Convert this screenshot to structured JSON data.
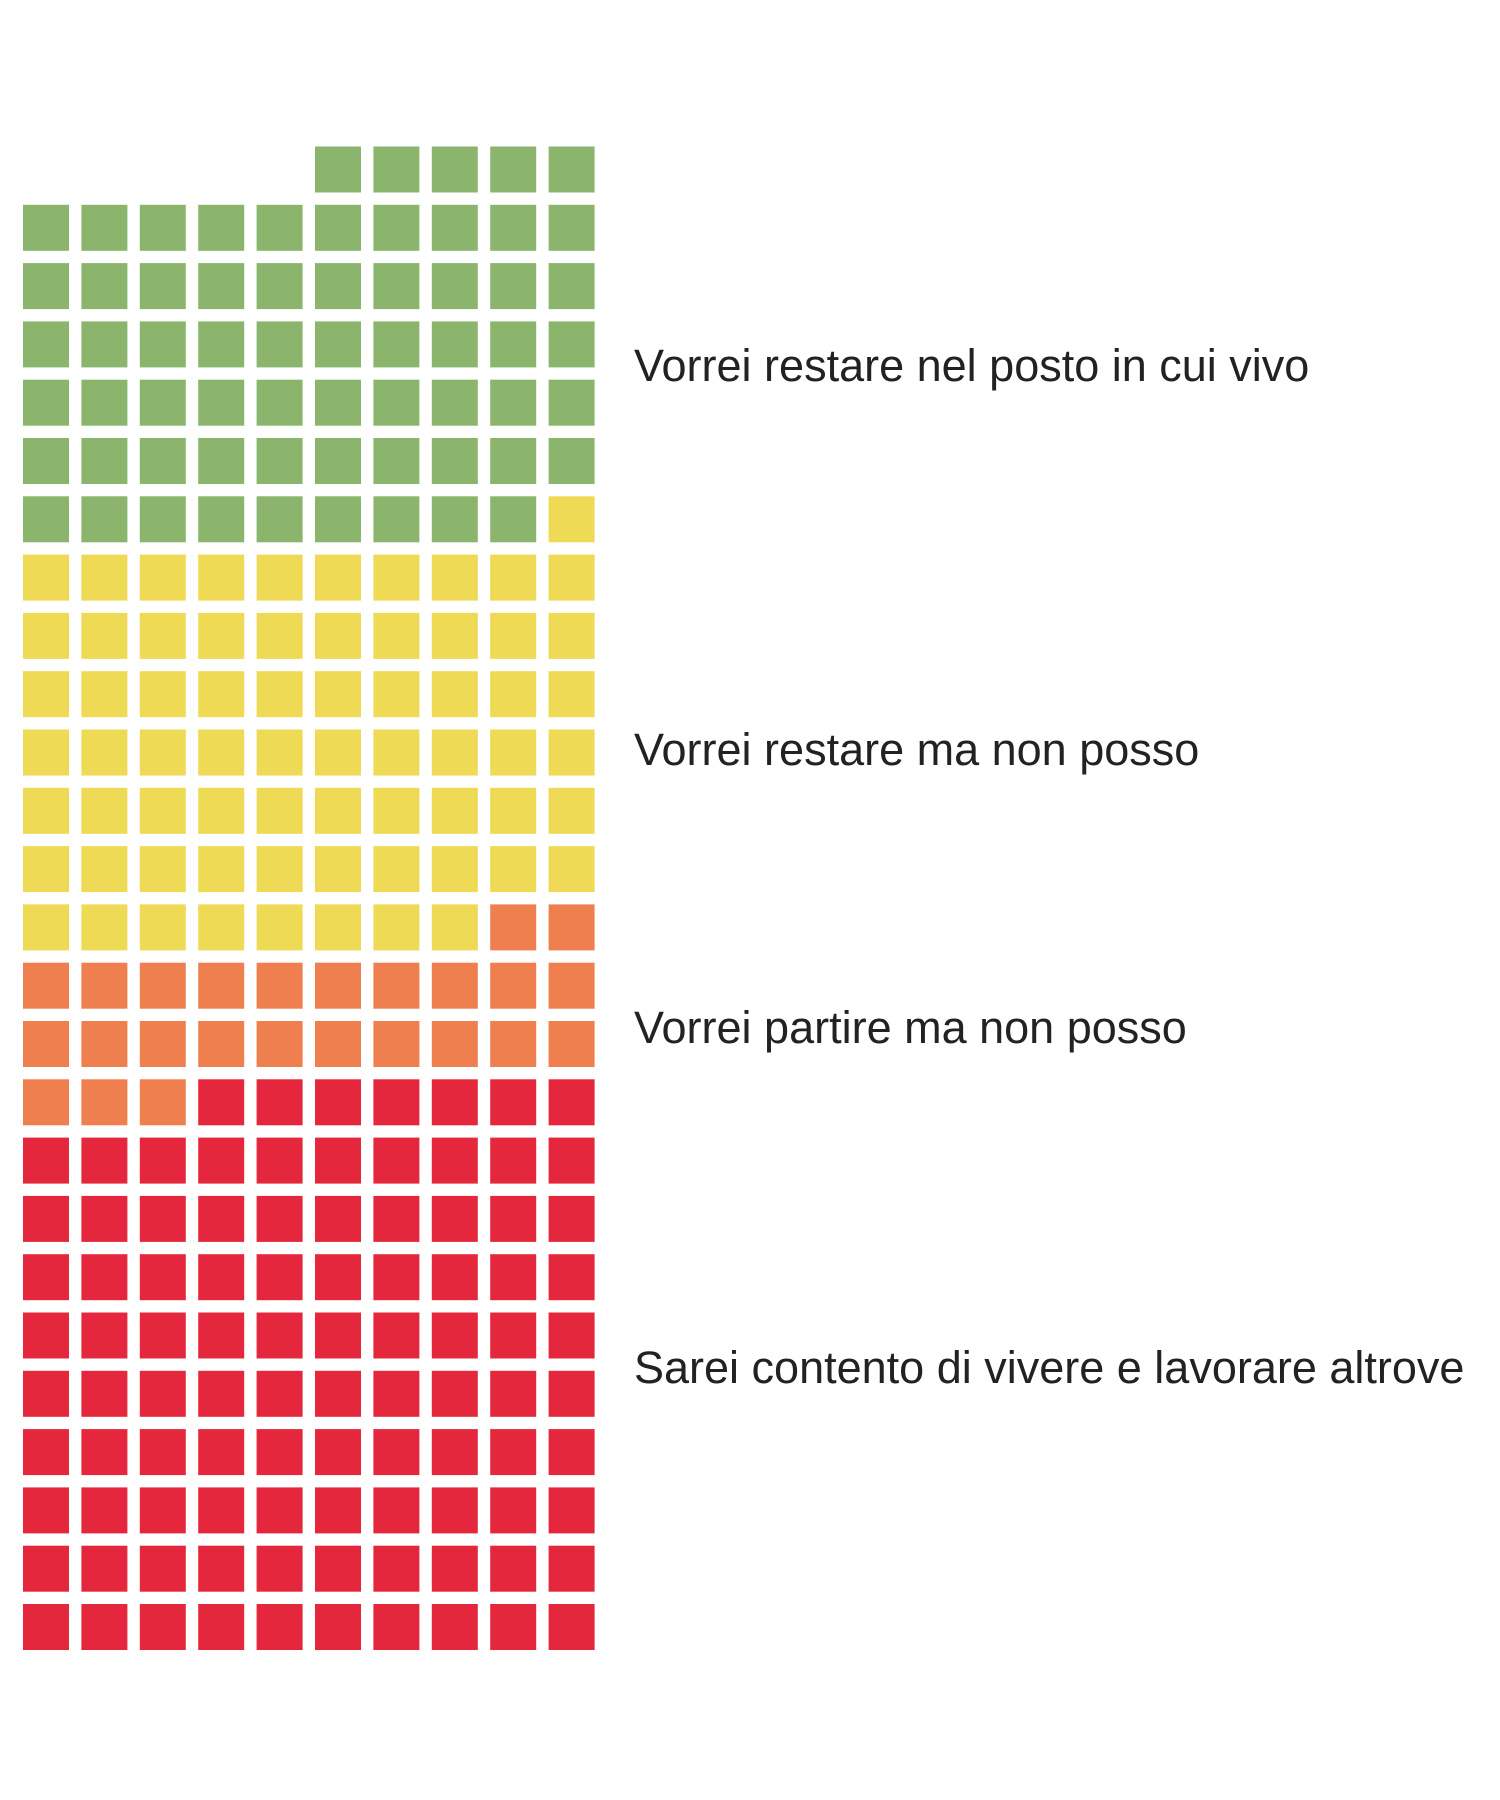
{
  "chart_data": {
    "type": "waffle",
    "columns": 10,
    "fill_order": "bottom-to-top, right-to-left",
    "series": [
      {
        "name": "Sarei contento di vivere e lavorare altrove",
        "value": 97,
        "color": "#E4273C"
      },
      {
        "name": "Vorrei partire ma non posso",
        "value": 25,
        "color": "#EF7F4F"
      },
      {
        "name": "Vorrei restare ma non posso",
        "value": 69,
        "color": "#EEDA55"
      },
      {
        "name": "Vorrei restare nel posto in cui vivo",
        "value": 64,
        "color": "#8BB56C"
      }
    ]
  }
}
